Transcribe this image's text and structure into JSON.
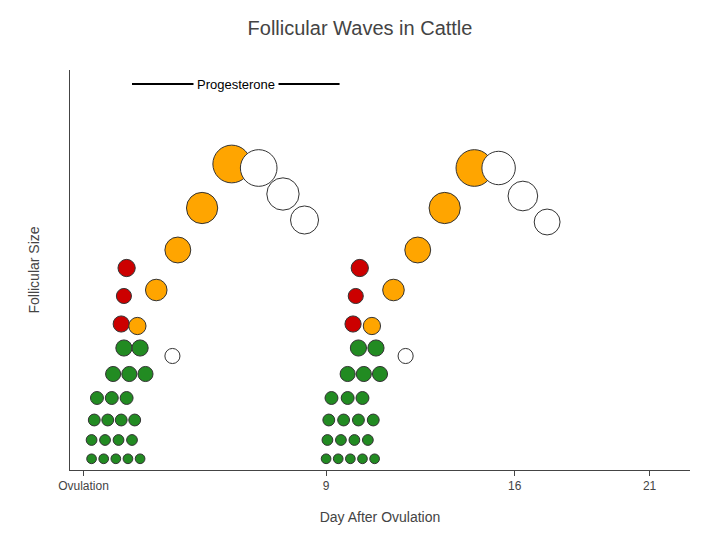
{
  "chart_data": {
    "type": "scatter",
    "title": "Follicular Waves in Cattle",
    "xlabel": "Day After Ovulation",
    "ylabel": "Follicular Size",
    "xlim": [
      -0.5,
      22.5
    ],
    "ylim": [
      0,
      10
    ],
    "xticks": [
      {
        "value": 0,
        "label": "Ovulation"
      },
      9,
      16,
      21
    ],
    "yticks": [],
    "tick_labels": "x",
    "grid": false,
    "marker": "circle",
    "annotations": [
      {
        "text": "Progesterone",
        "x0": 1.8,
        "x1": 9.5,
        "y": 9.65
      }
    ],
    "x": [
      0.3,
      0.75,
      1.2,
      1.65,
      2.1,
      0.3,
      0.8,
      1.3,
      1.8,
      0.4,
      0.9,
      1.4,
      1.9,
      0.5,
      1.05,
      1.6,
      1.1,
      1.7,
      2.3,
      1.5,
      2.1,
      3.3,
      1.4,
      1.5,
      1.6,
      2.0,
      2.7,
      3.5,
      4.4,
      5.5,
      6.5,
      7.4,
      8.2,
      9.0,
      9.45,
      9.9,
      10.35,
      10.8,
      9.05,
      9.55,
      10.05,
      10.55,
      9.1,
      9.65,
      10.2,
      10.75,
      9.2,
      9.8,
      10.35,
      9.8,
      10.4,
      11.0,
      10.2,
      10.85,
      11.95,
      10.0,
      10.1,
      10.25,
      10.7,
      11.5,
      12.4,
      13.4,
      14.5,
      15.4,
      16.3,
      17.2
    ],
    "values": [
      0.28,
      0.28,
      0.28,
      0.28,
      0.28,
      0.75,
      0.75,
      0.75,
      0.75,
      1.25,
      1.25,
      1.25,
      1.25,
      1.8,
      1.8,
      1.8,
      2.4,
      2.4,
      2.4,
      3.05,
      3.05,
      2.85,
      3.65,
      4.35,
      5.05,
      3.6,
      4.5,
      5.5,
      6.55,
      7.65,
      7.55,
      6.9,
      6.25,
      0.28,
      0.28,
      0.28,
      0.28,
      0.28,
      0.75,
      0.75,
      0.75,
      0.75,
      1.25,
      1.25,
      1.25,
      1.25,
      1.8,
      1.8,
      1.8,
      2.4,
      2.4,
      2.4,
      3.05,
      3.05,
      2.85,
      3.65,
      4.35,
      5.05,
      3.6,
      4.5,
      5.5,
      6.55,
      7.55,
      7.55,
      6.85,
      6.2
    ],
    "sizes": [
      0.18,
      0.18,
      0.18,
      0.18,
      0.18,
      0.2,
      0.2,
      0.2,
      0.2,
      0.22,
      0.22,
      0.22,
      0.22,
      0.24,
      0.24,
      0.24,
      0.28,
      0.28,
      0.28,
      0.3,
      0.3,
      0.28,
      0.3,
      0.28,
      0.32,
      0.32,
      0.4,
      0.48,
      0.58,
      0.7,
      0.68,
      0.6,
      0.52,
      0.18,
      0.18,
      0.18,
      0.18,
      0.18,
      0.2,
      0.2,
      0.2,
      0.2,
      0.22,
      0.22,
      0.22,
      0.22,
      0.24,
      0.24,
      0.24,
      0.28,
      0.28,
      0.28,
      0.3,
      0.3,
      0.28,
      0.3,
      0.28,
      0.32,
      0.32,
      0.4,
      0.48,
      0.58,
      0.68,
      0.62,
      0.55,
      0.48
    ],
    "colors": [
      "#228B22",
      "#228B22",
      "#228B22",
      "#228B22",
      "#228B22",
      "#228B22",
      "#228B22",
      "#228B22",
      "#228B22",
      "#228B22",
      "#228B22",
      "#228B22",
      "#228B22",
      "#228B22",
      "#228B22",
      "#228B22",
      "#228B22",
      "#228B22",
      "#228B22",
      "#228B22",
      "#228B22",
      "#ffffff",
      "#CC0000",
      "#CC0000",
      "#CC0000",
      "#FFA500",
      "#FFA500",
      "#FFA500",
      "#FFA500",
      "#FFA500",
      "#ffffff",
      "#ffffff",
      "#ffffff",
      "#228B22",
      "#228B22",
      "#228B22",
      "#228B22",
      "#228B22",
      "#228B22",
      "#228B22",
      "#228B22",
      "#228B22",
      "#228B22",
      "#228B22",
      "#228B22",
      "#228B22",
      "#228B22",
      "#228B22",
      "#228B22",
      "#228B22",
      "#228B22",
      "#228B22",
      "#228B22",
      "#228B22",
      "#ffffff",
      "#CC0000",
      "#CC0000",
      "#CC0000",
      "#FFA500",
      "#FFA500",
      "#FFA500",
      "#FFA500",
      "#FFA500",
      "#ffffff",
      "#ffffff",
      "#ffffff"
    ]
  }
}
